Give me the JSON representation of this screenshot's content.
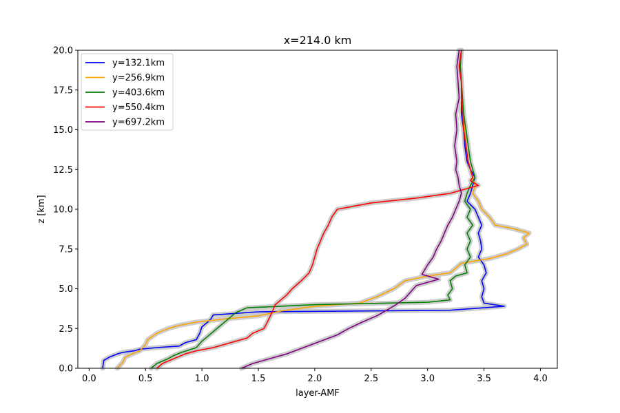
{
  "chart_data": {
    "type": "line",
    "title": "x=214.0 km",
    "xlabel": "layer-AMF",
    "ylabel": "z [km]",
    "xlim": [
      -0.1,
      4.15
    ],
    "ylim": [
      0,
      20
    ],
    "xticks": [
      0.0,
      0.5,
      1.0,
      1.5,
      2.0,
      2.5,
      3.0,
      3.5,
      4.0
    ],
    "yticks": [
      0.0,
      2.5,
      5.0,
      7.5,
      10.0,
      12.5,
      15.0,
      17.5,
      20.0
    ],
    "xtick_labels": [
      "0.0",
      "0.5",
      "1.0",
      "1.5",
      "2.0",
      "2.5",
      "3.0",
      "3.5",
      "4.0"
    ],
    "ytick_labels": [
      "0.0",
      "2.5",
      "5.0",
      "7.5",
      "10.0",
      "12.5",
      "15.0",
      "17.5",
      "20.0"
    ],
    "grid": false,
    "legend_position": "upper-left",
    "uncertainty_band_color": "#c8c8c8",
    "series": [
      {
        "name": "y=132.1km",
        "color": "#0000ff",
        "points": [
          [
            0.12,
            0.0
          ],
          [
            0.13,
            0.5
          ],
          [
            0.18,
            0.7
          ],
          [
            0.25,
            0.9
          ],
          [
            0.3,
            1.0
          ],
          [
            0.4,
            1.1
          ],
          [
            0.45,
            1.2
          ],
          [
            0.6,
            1.3
          ],
          [
            0.8,
            1.4
          ],
          [
            0.85,
            1.6
          ],
          [
            0.95,
            1.8
          ],
          [
            0.98,
            2.2
          ],
          [
            1.0,
            2.6
          ],
          [
            1.05,
            2.9
          ],
          [
            1.08,
            3.1
          ],
          [
            1.1,
            3.35
          ],
          [
            1.5,
            3.55
          ],
          [
            3.2,
            3.65
          ],
          [
            3.68,
            3.9
          ],
          [
            3.5,
            4.1
          ],
          [
            3.48,
            4.5
          ],
          [
            3.5,
            5.0
          ],
          [
            3.48,
            5.5
          ],
          [
            3.52,
            6.0
          ],
          [
            3.5,
            6.5
          ],
          [
            3.45,
            7.0
          ],
          [
            3.48,
            7.5
          ],
          [
            3.47,
            8.0
          ],
          [
            3.45,
            8.5
          ],
          [
            3.48,
            9.0
          ],
          [
            3.45,
            9.5
          ],
          [
            3.42,
            10.0
          ],
          [
            3.35,
            10.5
          ],
          [
            3.38,
            11.0
          ],
          [
            3.4,
            11.5
          ],
          [
            3.42,
            12.0
          ],
          [
            3.38,
            12.5
          ],
          [
            3.35,
            13.0
          ],
          [
            3.33,
            14.0
          ],
          [
            3.32,
            15.0
          ],
          [
            3.3,
            16.0
          ],
          [
            3.3,
            17.0
          ],
          [
            3.3,
            18.0
          ],
          [
            3.28,
            19.0
          ],
          [
            3.3,
            20.0
          ]
        ]
      },
      {
        "name": "y=256.9km",
        "color": "#ffa500",
        "points": [
          [
            0.25,
            0.0
          ],
          [
            0.3,
            0.4
          ],
          [
            0.32,
            0.7
          ],
          [
            0.38,
            0.9
          ],
          [
            0.45,
            1.1
          ],
          [
            0.5,
            1.5
          ],
          [
            0.52,
            1.8
          ],
          [
            0.6,
            2.2
          ],
          [
            0.7,
            2.5
          ],
          [
            0.8,
            2.7
          ],
          [
            0.95,
            2.9
          ],
          [
            1.2,
            3.1
          ],
          [
            1.5,
            3.3
          ],
          [
            1.7,
            3.6
          ],
          [
            2.0,
            3.9
          ],
          [
            2.4,
            4.1
          ],
          [
            2.55,
            4.5
          ],
          [
            2.7,
            5.0
          ],
          [
            2.8,
            5.5
          ],
          [
            3.0,
            5.8
          ],
          [
            3.2,
            6.0
          ],
          [
            3.25,
            6.3
          ],
          [
            3.3,
            6.6
          ],
          [
            3.55,
            6.9
          ],
          [
            3.7,
            7.2
          ],
          [
            3.8,
            7.5
          ],
          [
            3.88,
            7.8
          ],
          [
            3.85,
            8.2
          ],
          [
            3.9,
            8.5
          ],
          [
            3.75,
            8.8
          ],
          [
            3.6,
            9.0
          ],
          [
            3.55,
            9.5
          ],
          [
            3.48,
            10.0
          ],
          [
            3.45,
            10.5
          ],
          [
            3.4,
            11.0
          ],
          [
            3.42,
            11.5
          ],
          [
            3.4,
            12.0
          ],
          [
            3.38,
            12.5
          ],
          [
            3.36,
            13.0
          ],
          [
            3.34,
            14.0
          ],
          [
            3.33,
            15.0
          ],
          [
            3.31,
            16.0
          ],
          [
            3.3,
            17.0
          ],
          [
            3.3,
            18.0
          ],
          [
            3.29,
            19.0
          ],
          [
            3.3,
            20.0
          ]
        ]
      },
      {
        "name": "y=403.6km",
        "color": "#008000",
        "points": [
          [
            0.55,
            0.0
          ],
          [
            0.6,
            0.3
          ],
          [
            0.7,
            0.6
          ],
          [
            0.75,
            0.8
          ],
          [
            0.82,
            1.0
          ],
          [
            0.95,
            1.3
          ],
          [
            1.0,
            1.7
          ],
          [
            1.05,
            2.0
          ],
          [
            1.1,
            2.3
          ],
          [
            1.15,
            2.6
          ],
          [
            1.2,
            2.9
          ],
          [
            1.25,
            3.2
          ],
          [
            1.3,
            3.5
          ],
          [
            1.4,
            3.8
          ],
          [
            2.0,
            4.0
          ],
          [
            3.0,
            4.15
          ],
          [
            3.2,
            4.3
          ],
          [
            3.18,
            4.6
          ],
          [
            3.22,
            5.0
          ],
          [
            3.2,
            5.5
          ],
          [
            3.25,
            5.8
          ],
          [
            3.35,
            6.0
          ],
          [
            3.33,
            6.5
          ],
          [
            3.38,
            7.0
          ],
          [
            3.35,
            7.5
          ],
          [
            3.38,
            8.0
          ],
          [
            3.35,
            8.5
          ],
          [
            3.4,
            9.0
          ],
          [
            3.35,
            9.5
          ],
          [
            3.38,
            10.0
          ],
          [
            3.33,
            10.5
          ],
          [
            3.35,
            11.0
          ],
          [
            3.38,
            11.5
          ],
          [
            3.42,
            12.0
          ],
          [
            3.4,
            12.5
          ],
          [
            3.38,
            13.0
          ],
          [
            3.36,
            14.0
          ],
          [
            3.34,
            15.0
          ],
          [
            3.32,
            16.0
          ],
          [
            3.31,
            17.0
          ],
          [
            3.3,
            18.0
          ],
          [
            3.29,
            19.0
          ],
          [
            3.3,
            20.0
          ]
        ]
      },
      {
        "name": "y=550.4km",
        "color": "#ff0000",
        "points": [
          [
            0.6,
            0.0
          ],
          [
            0.65,
            0.3
          ],
          [
            0.75,
            0.6
          ],
          [
            0.85,
            0.9
          ],
          [
            0.95,
            1.1
          ],
          [
            1.1,
            1.3
          ],
          [
            1.2,
            1.5
          ],
          [
            1.3,
            1.7
          ],
          [
            1.4,
            1.9
          ],
          [
            1.45,
            2.2
          ],
          [
            1.55,
            2.5
          ],
          [
            1.58,
            2.9
          ],
          [
            1.6,
            3.2
          ],
          [
            1.62,
            3.5
          ],
          [
            1.65,
            4.0
          ],
          [
            1.7,
            4.3
          ],
          [
            1.75,
            4.6
          ],
          [
            1.8,
            5.0
          ],
          [
            1.88,
            5.5
          ],
          [
            1.95,
            6.0
          ],
          [
            1.98,
            6.5
          ],
          [
            2.0,
            7.0
          ],
          [
            2.02,
            7.5
          ],
          [
            2.05,
            8.0
          ],
          [
            2.08,
            8.5
          ],
          [
            2.12,
            9.0
          ],
          [
            2.15,
            9.5
          ],
          [
            2.2,
            10.0
          ],
          [
            2.5,
            10.4
          ],
          [
            2.9,
            10.7
          ],
          [
            3.2,
            11.0
          ],
          [
            3.45,
            11.5
          ],
          [
            3.38,
            11.8
          ],
          [
            3.4,
            12.0
          ],
          [
            3.38,
            12.5
          ],
          [
            3.36,
            13.0
          ],
          [
            3.34,
            14.0
          ],
          [
            3.32,
            15.0
          ],
          [
            3.31,
            16.0
          ],
          [
            3.3,
            17.0
          ],
          [
            3.3,
            18.0
          ],
          [
            3.28,
            19.0
          ],
          [
            3.3,
            20.0
          ]
        ]
      },
      {
        "name": "y=697.2km",
        "color": "#800080",
        "points": [
          [
            1.35,
            0.0
          ],
          [
            1.45,
            0.3
          ],
          [
            1.6,
            0.6
          ],
          [
            1.75,
            0.9
          ],
          [
            1.9,
            1.3
          ],
          [
            2.05,
            1.7
          ],
          [
            2.2,
            2.1
          ],
          [
            2.3,
            2.5
          ],
          [
            2.42,
            2.9
          ],
          [
            2.55,
            3.3
          ],
          [
            2.65,
            3.7
          ],
          [
            2.72,
            4.0
          ],
          [
            2.8,
            4.4
          ],
          [
            2.85,
            4.8
          ],
          [
            2.9,
            5.2
          ],
          [
            3.1,
            5.6
          ],
          [
            2.95,
            5.9
          ],
          [
            3.0,
            6.5
          ],
          [
            3.05,
            7.0
          ],
          [
            3.08,
            7.5
          ],
          [
            3.12,
            8.0
          ],
          [
            3.15,
            8.5
          ],
          [
            3.18,
            9.0
          ],
          [
            3.22,
            9.5
          ],
          [
            3.25,
            10.0
          ],
          [
            3.28,
            10.5
          ],
          [
            3.3,
            11.0
          ],
          [
            3.28,
            11.5
          ],
          [
            3.27,
            12.0
          ],
          [
            3.25,
            12.5
          ],
          [
            3.26,
            13.0
          ],
          [
            3.24,
            14.0
          ],
          [
            3.26,
            15.0
          ],
          [
            3.25,
            16.0
          ],
          [
            3.28,
            17.0
          ],
          [
            3.27,
            18.0
          ],
          [
            3.26,
            19.0
          ],
          [
            3.28,
            20.0
          ]
        ]
      }
    ]
  }
}
